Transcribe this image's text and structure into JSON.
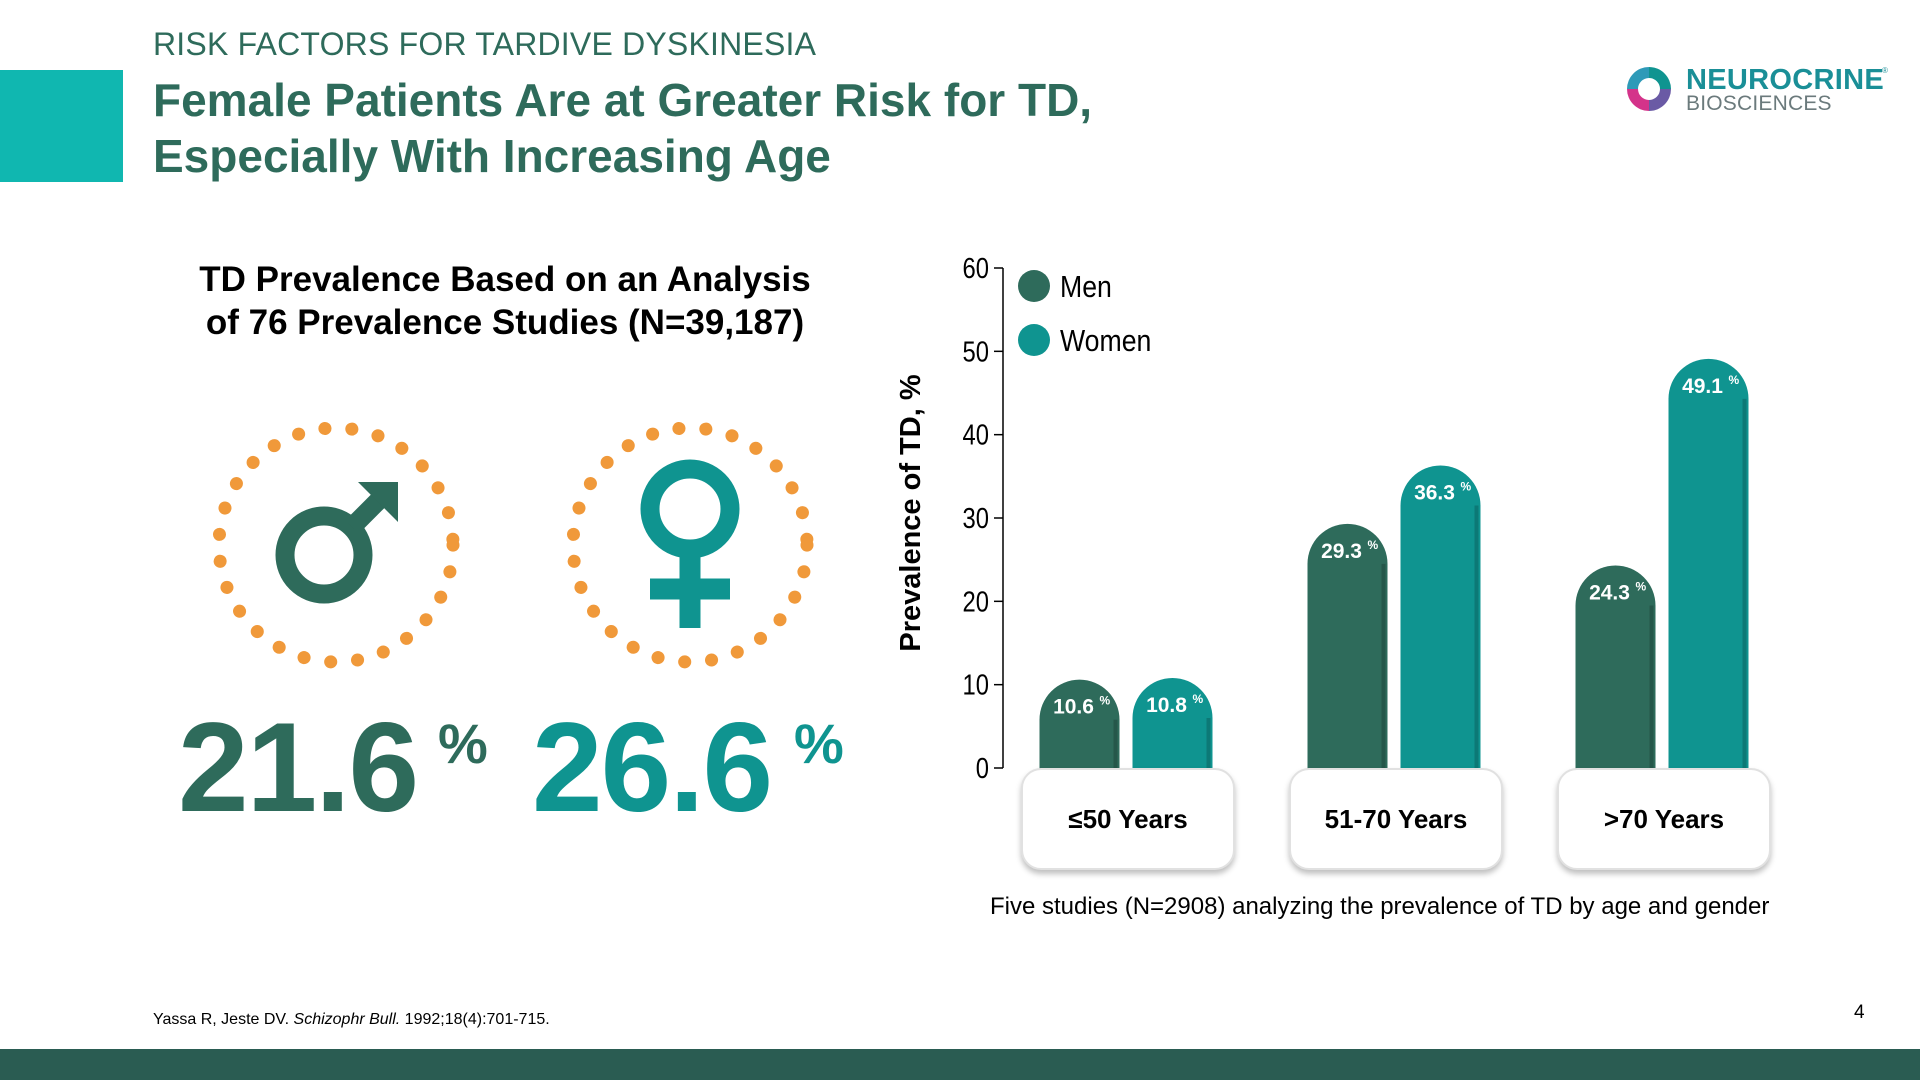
{
  "header": {
    "kicker": "RISK FACTORS FOR TARDIVE DYSKINESIA",
    "title_line1": "Female Patients Are at Greater Risk for TD,",
    "title_line2": "Especially With Increasing Age"
  },
  "logo": {
    "name": "NEUROCRINE",
    "trademark": "®",
    "sub": "BIOSCIENCES"
  },
  "left_panel": {
    "title_line1": "TD Prevalence Based on an Analysis",
    "title_line2": "of 76 Prevalence Studies (N=39,187)",
    "men_value": "21.6",
    "women_value": "26.6",
    "percent_sign": "%",
    "icons": [
      "male-symbol-icon",
      "female-symbol-icon"
    ]
  },
  "chart_data": {
    "type": "bar",
    "categories": [
      "≤50 Years",
      "51-70 Years",
      ">70 Years"
    ],
    "series": [
      {
        "name": "Men",
        "values": [
          10.6,
          29.3,
          24.3
        ],
        "labels": [
          "10.6",
          "29.3",
          "24.3"
        ],
        "color": "#2e6b5b"
      },
      {
        "name": "Women",
        "values": [
          10.8,
          36.3,
          49.1
        ],
        "labels": [
          "10.8",
          "36.3",
          "49.1"
        ],
        "color": "#0f9490"
      }
    ],
    "label_suffix": "%",
    "ylabel": "Prevalence of TD, %",
    "ylim": [
      0,
      60
    ],
    "yticks": [
      "0",
      "10",
      "20",
      "30",
      "40",
      "50",
      "60"
    ],
    "legend_position": "top-left",
    "grid": false,
    "caption": "Five studies (N=2908) analyzing the prevalence of TD by age and gender"
  },
  "colors": {
    "accent": "#10b7b0",
    "men": "#2e6b5b",
    "women": "#0f9490",
    "dots": "#f0993a",
    "footer": "#2a5c52"
  },
  "footer": {
    "citation_authors": "Yassa R, Jeste DV. ",
    "citation_journal": "Schizophr Bull.",
    "citation_rest": " 1992;18(4):701-715.",
    "page_number": "4"
  }
}
